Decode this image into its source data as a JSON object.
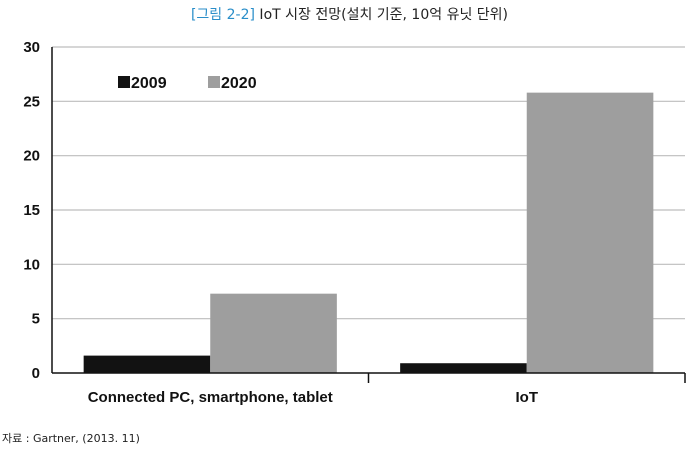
{
  "title": {
    "figure_label": "[그림 2-2]",
    "text": " IoT 시장 전망(설치 기준, 10억 유닛 단위)"
  },
  "source": "자료 : Gartner, (2013. 11)",
  "colors": {
    "series_2009": "#121212",
    "series_2020": "#9e9e9e",
    "grid": "#bdbdbd",
    "axis": "#111111",
    "title_accent": "#2a8ec9"
  },
  "chart_data": {
    "type": "bar",
    "categories": [
      "Connected PC, smartphone, tablet",
      "IoT"
    ],
    "series": [
      {
        "name": "2009",
        "values": [
          1.6,
          0.9
        ]
      },
      {
        "name": "2020",
        "values": [
          7.3,
          25.8
        ]
      }
    ],
    "yticks": [
      "0",
      "5",
      "10",
      "15",
      "20",
      "25",
      "30"
    ],
    "ylim": [
      0,
      30
    ],
    "grid": true,
    "legend_position": "top-left"
  }
}
